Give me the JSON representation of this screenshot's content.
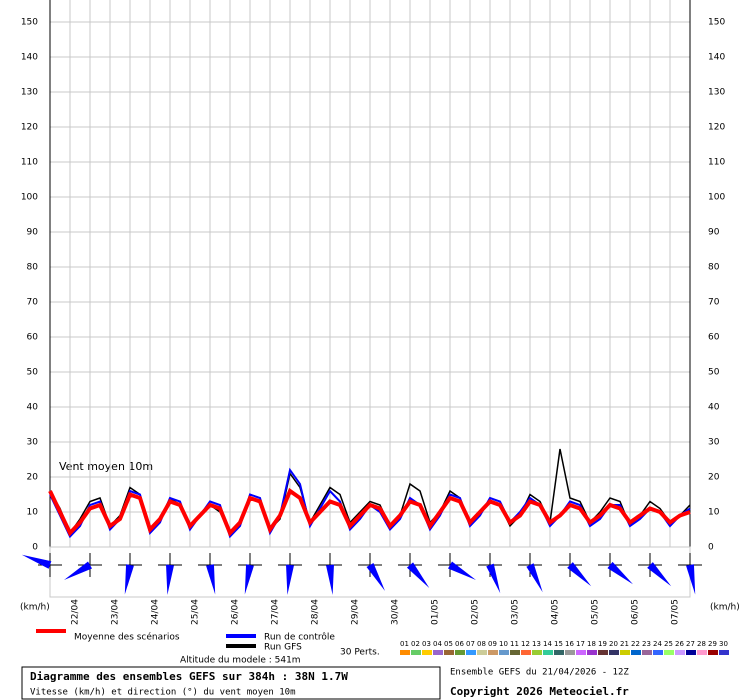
{
  "chart_data": {
    "type": "line",
    "annotation": "Vent moyen 10m",
    "unit_label": "(km/h)",
    "ylim": [
      0,
      150
    ],
    "yticks": [
      0,
      10,
      20,
      30,
      40,
      50,
      60,
      70,
      80,
      90,
      100,
      110,
      120,
      130,
      140,
      150
    ],
    "grid": true,
    "date_labels": [
      "22/04",
      "23/04",
      "24/04",
      "25/04",
      "26/04",
      "27/04",
      "28/04",
      "29/04",
      "30/04",
      "01/05",
      "02/05",
      "03/05",
      "04/05",
      "05/05",
      "06/05",
      "07/05"
    ],
    "series": [
      {
        "name": "Moyenne des scénarios",
        "color": "#ff0000",
        "width": 4,
        "values": [
          16,
          10,
          4,
          7,
          11,
          12,
          6,
          8,
          15,
          14,
          5,
          8,
          13,
          12,
          6,
          9,
          12,
          11,
          4,
          7,
          14,
          13,
          5,
          9,
          16,
          14,
          7,
          10,
          13,
          12,
          6,
          9,
          12,
          11,
          6,
          9,
          13,
          12,
          6,
          10,
          14,
          13,
          7,
          10,
          13,
          12,
          7,
          9,
          13,
          12,
          7,
          9,
          12,
          11,
          7,
          9,
          12,
          11,
          7,
          9,
          11,
          10,
          7,
          9,
          10
        ]
      },
      {
        "name": "Run de contrôle",
        "color": "#0000ff",
        "width": 2,
        "values": [
          15,
          9,
          3,
          6,
          12,
          13,
          5,
          8,
          16,
          15,
          4,
          7,
          14,
          13,
          5,
          9,
          13,
          12,
          3,
          6,
          15,
          14,
          4,
          9,
          22,
          18,
          6,
          11,
          16,
          13,
          5,
          8,
          12,
          10,
          5,
          8,
          14,
          12,
          5,
          9,
          15,
          14,
          6,
          9,
          14,
          13,
          7,
          10,
          14,
          12,
          6,
          9,
          13,
          12,
          6,
          8,
          12,
          12,
          6,
          8,
          11,
          10,
          6,
          9,
          11
        ]
      },
      {
        "name": "Run GFS",
        "color": "#000000",
        "width": 1.5,
        "values": [
          16,
          11,
          4,
          8,
          13,
          14,
          6,
          9,
          17,
          15,
          5,
          8,
          14,
          12,
          6,
          9,
          12,
          10,
          4,
          7,
          15,
          14,
          5,
          8,
          21,
          17,
          7,
          12,
          17,
          15,
          7,
          10,
          13,
          12,
          6,
          9,
          18,
          16,
          7,
          10,
          16,
          14,
          7,
          10,
          13,
          12,
          6,
          9,
          15,
          13,
          7,
          28,
          14,
          13,
          7,
          10,
          14,
          13,
          6,
          9,
          13,
          11,
          7,
          9,
          12
        ]
      }
    ],
    "altitude": "Altitude du modele : 541m",
    "perturbations": {
      "label": "30 Perts.",
      "members": [
        {
          "name": "01",
          "color": "#ff8c00"
        },
        {
          "name": "02",
          "color": "#66cc66"
        },
        {
          "name": "03",
          "color": "#ffcc00"
        },
        {
          "name": "04",
          "color": "#9966cc"
        },
        {
          "name": "05",
          "color": "#996633"
        },
        {
          "name": "06",
          "color": "#669933"
        },
        {
          "name": "07",
          "color": "#3399ff"
        },
        {
          "name": "08",
          "color": "#cccc99"
        },
        {
          "name": "09",
          "color": "#cc9966"
        },
        {
          "name": "10",
          "color": "#6699cc"
        },
        {
          "name": "11",
          "color": "#666633"
        },
        {
          "name": "12",
          "color": "#ff6633"
        },
        {
          "name": "13",
          "color": "#99cc33"
        },
        {
          "name": "14",
          "color": "#33cc99"
        },
        {
          "name": "15",
          "color": "#336666"
        },
        {
          "name": "16",
          "color": "#999999"
        },
        {
          "name": "17",
          "color": "#cc66ff"
        },
        {
          "name": "18",
          "color": "#9933cc"
        },
        {
          "name": "19",
          "color": "#663333"
        },
        {
          "name": "20",
          "color": "#333366"
        },
        {
          "name": "21",
          "color": "#cccc00"
        },
        {
          "name": "22",
          "color": "#0066cc"
        },
        {
          "name": "23",
          "color": "#996699"
        },
        {
          "name": "24",
          "color": "#3366ff"
        },
        {
          "name": "25",
          "color": "#99ff66"
        },
        {
          "name": "26",
          "color": "#cc99ff"
        },
        {
          "name": "27",
          "color": "#000099"
        },
        {
          "name": "28",
          "color": "#ff99cc"
        },
        {
          "name": "29",
          "color": "#990000"
        },
        {
          "name": "30",
          "color": "#3333cc"
        }
      ]
    },
    "title": "Diagramme des ensembles GEFS sur 384h : 38N 1.7W",
    "subtitle": "Vitesse (km/h) et direction (°) du vent moyen 10m",
    "run_info": "Ensemble GEFS du 21/04/2026 - 12Z",
    "copyright": "Copyright 2026 Meteociel.fr"
  }
}
